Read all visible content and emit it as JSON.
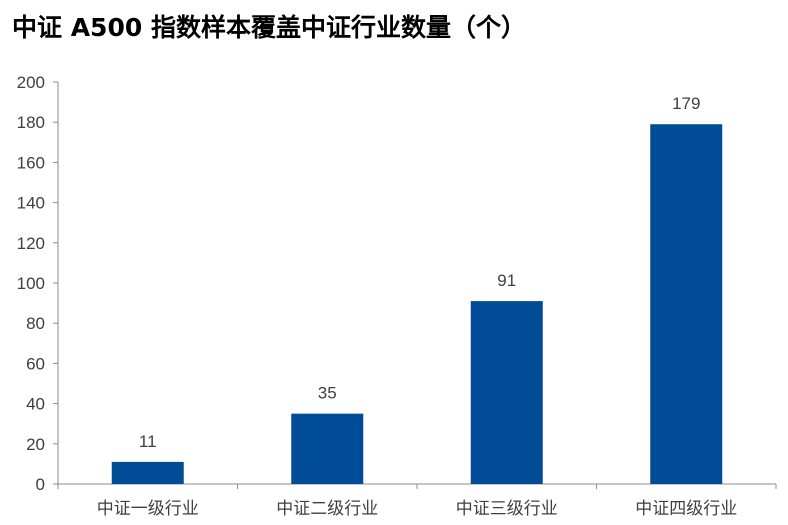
{
  "title": "中证 A500 指数样本覆盖中证行业数量（个）",
  "colors": {
    "bar": "#004C97",
    "axis": "#8C8C8C",
    "text": "#404040",
    "title": "#000000"
  },
  "chart_data": {
    "type": "bar",
    "title": "中证 A500 指数样本覆盖中证行业数量（个）",
    "categories": [
      "中证一级行业",
      "中证二级行业",
      "中证三级行业",
      "中证四级行业"
    ],
    "values": [
      11,
      35,
      91,
      179
    ],
    "data_labels": [
      "11",
      "35",
      "91",
      "179"
    ],
    "xlabel": "",
    "ylabel": "",
    "ylim": [
      0,
      200
    ],
    "y_ticks": [
      0,
      20,
      40,
      60,
      80,
      100,
      120,
      140,
      160,
      180,
      200
    ],
    "grid": false,
    "legend": "none"
  }
}
